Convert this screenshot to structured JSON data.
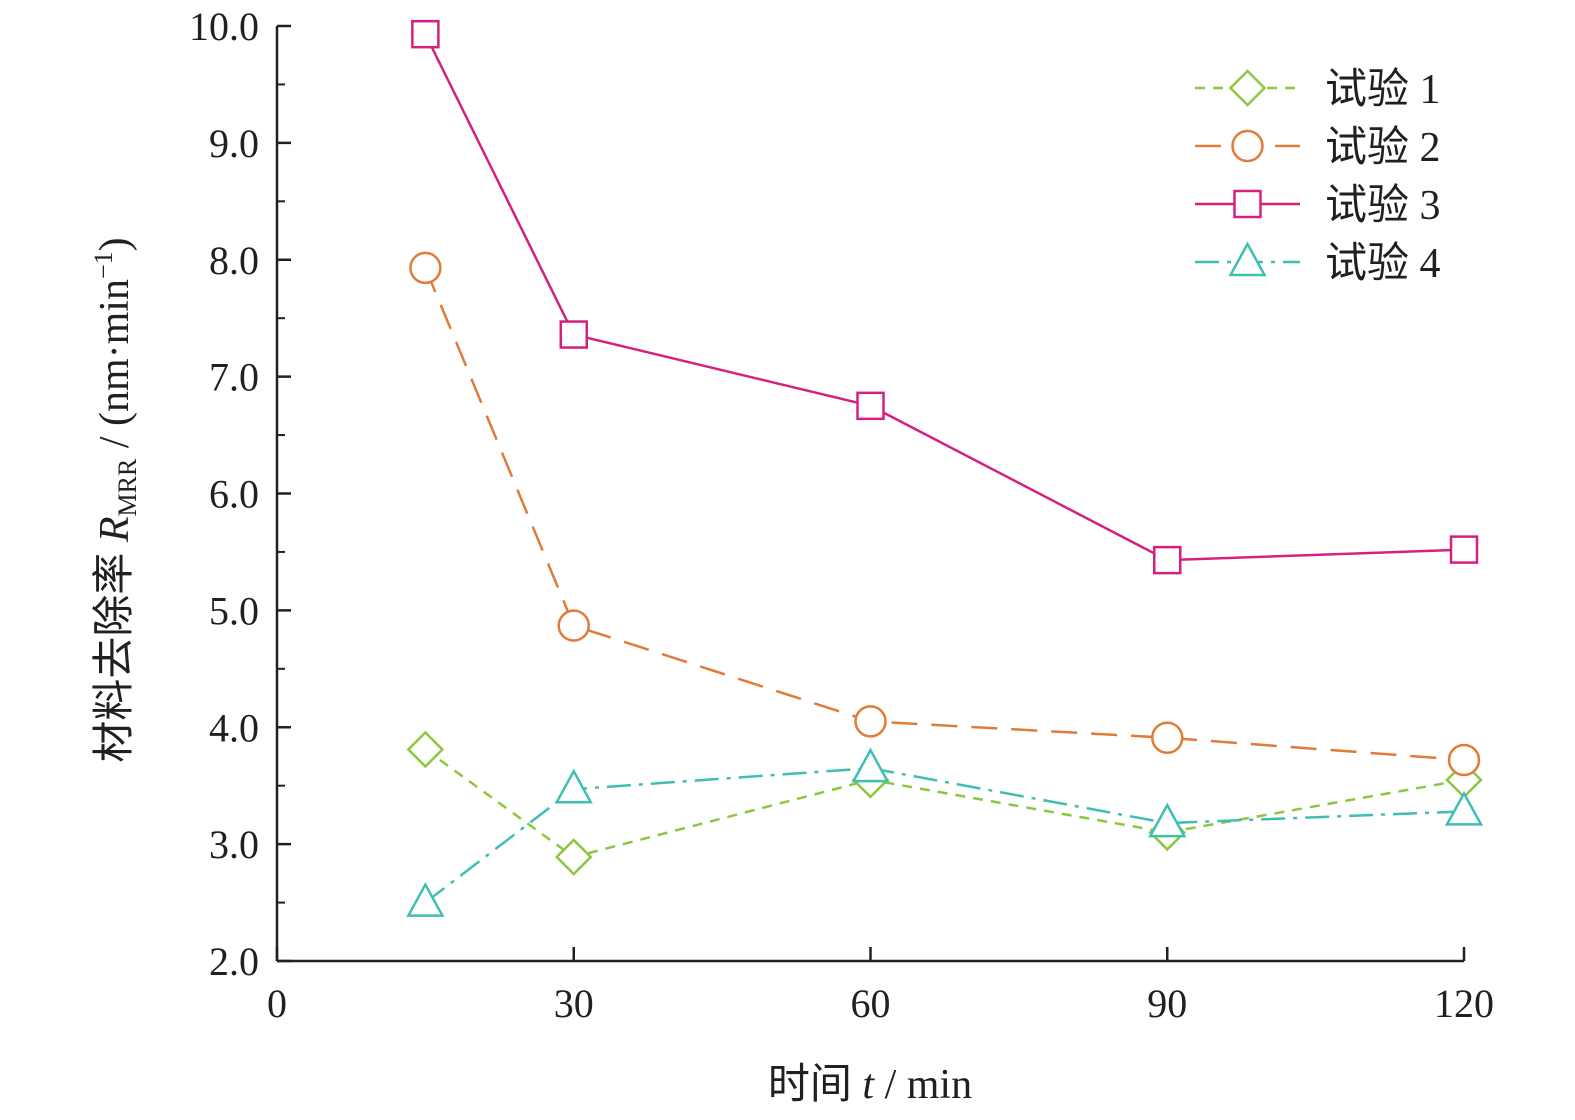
{
  "chart_data": {
    "type": "line",
    "x_axis": {
      "label_prefix": "时间 ",
      "label_var": "t",
      "label_suffix": " / min",
      "range": [
        0,
        120
      ],
      "ticks": [
        0,
        30,
        60,
        90,
        120
      ],
      "tick_labels": [
        "0",
        "30",
        "60",
        "90",
        "120"
      ]
    },
    "y_axis": {
      "label_prefix": "材料去除率 ",
      "label_var": "R",
      "label_sub": "MRR",
      "label_unit": " / (nm·min",
      "label_sup": "−1",
      "label_end": ")",
      "range": [
        2.0,
        10.0
      ],
      "ticks": [
        2,
        3,
        4,
        5,
        6,
        7,
        8,
        9,
        10
      ],
      "tick_labels": [
        "2.0",
        "3.0",
        "4.0",
        "5.0",
        "6.0",
        "7.0",
        "8.0",
        "9.0",
        "10.0"
      ],
      "minor_step": 0.5
    },
    "legend_position": "top-right",
    "grid": false,
    "series": [
      {
        "name": "试验 1",
        "color": "#8dc63f",
        "marker": "diamond",
        "dash": "10,8",
        "x": [
          15,
          30,
          60,
          90,
          120
        ],
        "y": [
          3.81,
          2.89,
          3.55,
          3.1,
          3.55
        ]
      },
      {
        "name": "试验 2",
        "color": "#e07b39",
        "marker": "circle",
        "dash": "26,14",
        "x": [
          15,
          30,
          60,
          90,
          120
        ],
        "y": [
          7.93,
          4.87,
          4.05,
          3.91,
          3.72
        ]
      },
      {
        "name": "试验 3",
        "color": "#d6207f",
        "marker": "square",
        "dash": "",
        "x": [
          15,
          30,
          60,
          90,
          120
        ],
        "y": [
          9.93,
          7.36,
          6.75,
          5.43,
          5.52
        ]
      },
      {
        "name": "试验 4",
        "color": "#3fbfb4",
        "marker": "triangle",
        "dash": "24,8,4,8",
        "x": [
          15,
          30,
          60,
          90,
          120
        ],
        "y": [
          2.5,
          3.47,
          3.65,
          3.18,
          3.28
        ]
      }
    ]
  }
}
